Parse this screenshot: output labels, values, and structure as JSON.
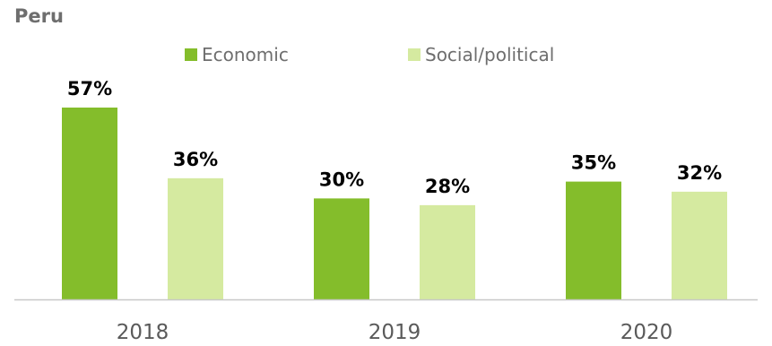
{
  "chart_data": {
    "type": "bar",
    "title": "Peru",
    "categories": [
      "2018",
      "2019",
      "2020"
    ],
    "series": [
      {
        "name": "Economic",
        "values": [
          57,
          30,
          35
        ],
        "labels": [
          "57%",
          "30%",
          "35%"
        ],
        "color": "#84bd2b"
      },
      {
        "name": "Social/political",
        "values": [
          36,
          28,
          32
        ],
        "labels": [
          "36%",
          "28%",
          "32%"
        ],
        "color": "#d5eaa0"
      }
    ],
    "ylim": [
      0,
      57
    ],
    "grid": false,
    "legend": "top-center",
    "axis_color": "#c8c8c8"
  }
}
